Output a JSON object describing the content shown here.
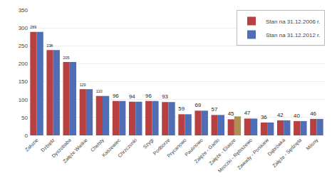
{
  "chart_data": {
    "type": "bar",
    "categories": [
      "Załuzie",
      "Dzbądz",
      "Dyszobaba",
      "Załęże Wielkie",
      "Chełsty",
      "Kaszewiec",
      "Chrzczonki",
      "Szygi",
      "Podborze",
      "Prycanowo",
      "Paulinowo",
      "Załęże - Gartki",
      "Załęże - Eliasze",
      "Mroczki - Rębiszewo",
      "Zawady - Ponikiew",
      "Dąbrówka",
      "Załęże - Sędzięta",
      "Milony"
    ],
    "series": [
      {
        "name": "Stan na 31.12.2006 r.",
        "color": "#b94040",
        "data_labels": true,
        "values": [
          289,
          238,
          205,
          129,
          110,
          96,
          94,
          96,
          93,
          59,
          69,
          57,
          45,
          47,
          36,
          42,
          40,
          46
        ]
      },
      {
        "name": "Stan na 31.12.2012 r.",
        "color": "#4f6eb5",
        "colors": [
          "#4f6eb5",
          "#4f6eb5",
          "#4f6eb5",
          "#4f6eb5",
          "#4f6eb5",
          "#4f6eb5",
          "#4f6eb5",
          "#4f6eb5",
          "#4f6eb5",
          "#4f6eb5",
          "#4f6eb5",
          "#4f6eb5",
          "#b09050",
          "#4f6eb5",
          "#4f6eb5",
          "#4f6eb5",
          "#4f6eb5",
          "#4f6eb5"
        ],
        "values": [
          289,
          238,
          205,
          129,
          110,
          96,
          94,
          96,
          93,
          59,
          69,
          57,
          53,
          47,
          36,
          42,
          40,
          46
        ]
      }
    ],
    "ylim": [
      0,
      350
    ],
    "yticks": [
      0,
      50,
      100,
      150,
      200,
      250,
      300,
      350
    ],
    "grid": true,
    "legend": "upper right"
  }
}
